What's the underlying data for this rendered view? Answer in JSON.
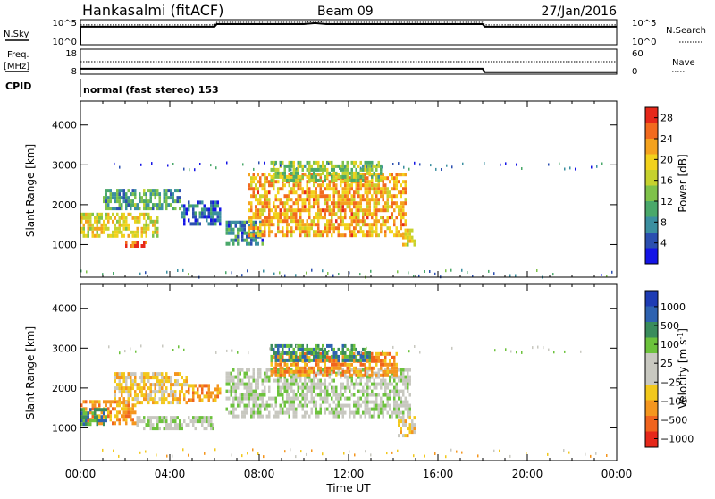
{
  "header": {
    "station": "Hankasalmi (fitACF)",
    "beam": "Beam 09",
    "date": "27/Jan/2016"
  },
  "nsky_panel": {
    "left_label": "N.Sky",
    "left_ticks": [
      "10^5",
      "10^0"
    ],
    "right_label": "N.Search",
    "right_ticks": [
      "10^5",
      "10^0"
    ],
    "series": {
      "x_hours": [
        0,
        0.2,
        6,
        6.1,
        10,
        10.5,
        11,
        18,
        18.1,
        24
      ],
      "level": [
        0.72,
        0.72,
        0.72,
        0.82,
        0.82,
        0.86,
        0.82,
        0.82,
        0.72,
        0.72
      ]
    }
  },
  "freq_panel": {
    "left_label": "Freq.",
    "left_unit": "[MHz]",
    "left_ticks": [
      "18",
      "8"
    ],
    "right_label": "Nave",
    "right_ticks": [
      "60",
      "0"
    ],
    "freq_series": {
      "x_hours": [
        0,
        0.2,
        6,
        6.1,
        18,
        18.1,
        24
      ],
      "mhz": [
        10.2,
        10.2,
        10.2,
        10.2,
        10.2,
        8.8,
        8.8
      ]
    },
    "nave_series": {
      "x_hours": [
        0,
        24
      ],
      "value": [
        30,
        30
      ]
    }
  },
  "cpid": {
    "label": "CPID",
    "text": "normal (fast stereo) 153"
  },
  "chart_data": [
    {
      "type": "heatmap",
      "ylabel": "Slant Range [km]",
      "xlabel": "Time UT",
      "x_range_hours": [
        0,
        24
      ],
      "y_range_km": [
        180,
        4600
      ],
      "y_ticks": [
        1000,
        2000,
        3000,
        4000
      ],
      "colorbar": {
        "label": "Power [dB]",
        "ticks": [
          "4",
          "8",
          "12",
          "16",
          "20",
          "24",
          "28"
        ],
        "range": [
          0,
          30
        ],
        "colors": [
          "#1414e6",
          "#2b4fb0",
          "#3b8fa0",
          "#4aa86a",
          "#7fc24a",
          "#c6d22e",
          "#f2d21c",
          "#f4a21e",
          "#f26a1e",
          "#e6281a"
        ]
      },
      "regions": [
        {
          "t0": 0.0,
          "t1": 3.5,
          "r0": 1250,
          "r1": 1800,
          "value": 18
        },
        {
          "t0": 1.0,
          "t1": 4.5,
          "r0": 1900,
          "r1": 2400,
          "value": 10
        },
        {
          "t0": 4.5,
          "t1": 6.2,
          "r0": 1500,
          "r1": 2100,
          "value": 6
        },
        {
          "t0": 6.5,
          "t1": 8.2,
          "r0": 1000,
          "r1": 1600,
          "value": 8
        },
        {
          "t0": 7.5,
          "t1": 14.6,
          "r0": 1200,
          "r1": 2800,
          "value": 22
        },
        {
          "t0": 8.5,
          "t1": 13.5,
          "r0": 2600,
          "r1": 3100,
          "value": 14
        },
        {
          "t0": 14.4,
          "t1": 15.0,
          "r0": 1000,
          "r1": 1400,
          "value": 20
        },
        {
          "t0": 2.0,
          "t1": 3.0,
          "r0": 1000,
          "r1": 1100,
          "value": 26
        }
      ],
      "bands": [
        {
          "r": 3000,
          "t0": 1.0,
          "t1": 23.5,
          "value": 6
        },
        {
          "r": 300,
          "t0": 0.0,
          "t1": 24.0,
          "value": 8
        }
      ]
    },
    {
      "type": "heatmap",
      "ylabel": "Slant Range [km]",
      "xlabel": "Time UT",
      "x_range_hours": [
        0,
        24
      ],
      "x_ticks": [
        "00:00",
        "04:00",
        "08:00",
        "12:00",
        "16:00",
        "20:00",
        "00:00"
      ],
      "y_range_km": [
        180,
        4600
      ],
      "y_ticks": [
        1000,
        2000,
        3000,
        4000
      ],
      "colorbar": {
        "label": "Velocity [m s",
        "label_superscript": "-1",
        "label_close": "]",
        "ticks": [
          "1000",
          "500",
          "100",
          "25",
          "−25",
          "−100",
          "−500",
          "−1000"
        ],
        "colors": [
          "#1e3cb4",
          "#2e62b0",
          "#3a8c5c",
          "#6cc23c",
          "#c8c8c0",
          "#c8c8c0",
          "#f2c81c",
          "#f4961e",
          "#f0641e",
          "#e6281a"
        ]
      },
      "regions": [
        {
          "t0": 0.0,
          "t1": 2.5,
          "r0": 1100,
          "r1": 1700,
          "value": "-500"
        },
        {
          "t0": 0.0,
          "t1": 1.2,
          "r0": 1100,
          "r1": 1500,
          "value": "100"
        },
        {
          "t0": 1.5,
          "t1": 4.8,
          "r0": 1600,
          "r1": 2400,
          "value": "-100"
        },
        {
          "t0": 2.5,
          "t1": 6.0,
          "r0": 1000,
          "r1": 1300,
          "value": "25"
        },
        {
          "t0": 4.8,
          "t1": 6.2,
          "r0": 1700,
          "r1": 2100,
          "value": "-500"
        },
        {
          "t0": 6.5,
          "t1": 14.8,
          "r0": 1300,
          "r1": 2500,
          "value": "25"
        },
        {
          "t0": 8.5,
          "t1": 14.2,
          "r0": 2300,
          "r1": 2900,
          "value": "-500"
        },
        {
          "t0": 8.5,
          "t1": 13.0,
          "r0": 2700,
          "r1": 3100,
          "value": "100"
        },
        {
          "t0": 14.2,
          "t1": 15.0,
          "r0": 800,
          "r1": 1300,
          "value": "-100"
        }
      ],
      "bands": [
        {
          "r": 3000,
          "t0": 1.0,
          "t1": 23.5,
          "value": "25"
        },
        {
          "r": 400,
          "t0": 0.0,
          "t1": 24.0,
          "value": "-100"
        }
      ]
    }
  ]
}
